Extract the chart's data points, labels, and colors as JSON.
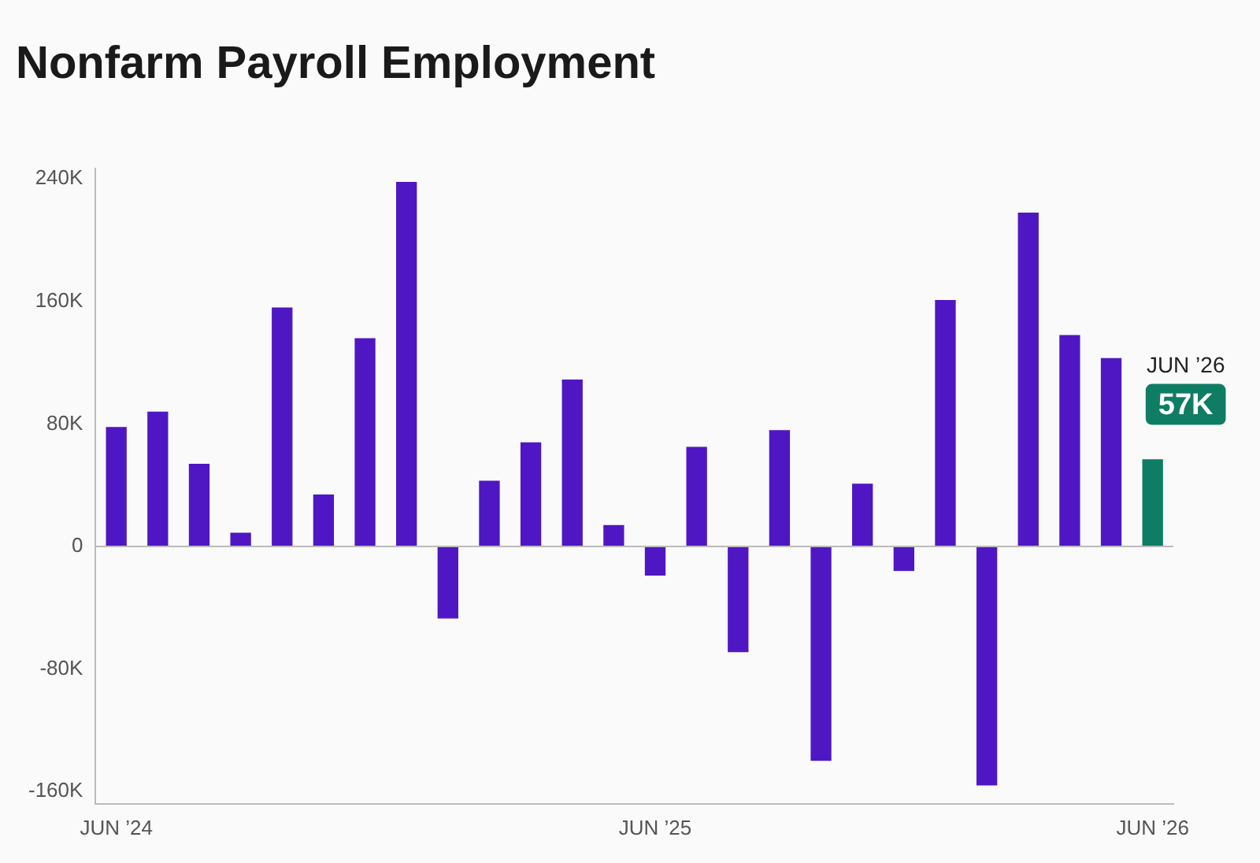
{
  "chart_data": {
    "type": "bar",
    "title": "Nonfarm Payroll Employment",
    "categories": [
      "JUN ’24",
      null,
      null,
      null,
      null,
      null,
      null,
      null,
      null,
      null,
      null,
      null,
      null,
      "JUN ’25",
      null,
      null,
      null,
      null,
      null,
      null,
      null,
      null,
      null,
      null,
      null,
      "JUN ’26"
    ],
    "values": [
      78,
      88,
      54,
      9,
      156,
      34,
      136,
      238,
      -47,
      43,
      68,
      109,
      14,
      -19,
      65,
      -69,
      76,
      -140,
      41,
      -16,
      161,
      -156,
      218,
      138,
      123,
      57
    ],
    "colors": [
      "#4f17c4",
      "#4f17c4",
      "#4f17c4",
      "#4f17c4",
      "#4f17c4",
      "#4f17c4",
      "#4f17c4",
      "#4f17c4",
      "#4f17c4",
      "#4f17c4",
      "#4f17c4",
      "#4f17c4",
      "#4f17c4",
      "#4f17c4",
      "#4f17c4",
      "#4f17c4",
      "#4f17c4",
      "#4f17c4",
      "#4f17c4",
      "#4f17c4",
      "#4f17c4",
      "#4f17c4",
      "#4f17c4",
      "#4f17c4",
      "#4f17c4",
      "#0f7d63"
    ],
    "value_labels": [
      null,
      null,
      null,
      null,
      null,
      null,
      null,
      null,
      null,
      null,
      null,
      null,
      null,
      null,
      null,
      null,
      null,
      null,
      null,
      null,
      null,
      null,
      null,
      null,
      null,
      "57K"
    ],
    "annotations": [
      "JUN ’26"
    ],
    "ylim": [
      -168,
      247
    ],
    "yticks": [
      {
        "value": 240,
        "label": "240K"
      },
      {
        "value": 160,
        "label": "160K"
      },
      {
        "value": 80,
        "label": "80K"
      },
      {
        "value": 0,
        "label": "0"
      },
      {
        "value": -80,
        "label": "-80K"
      },
      {
        "value": -160,
        "label": "-160K"
      }
    ],
    "ref_lines": [
      {
        "axis": "y",
        "value": 0,
        "color": "#bbbbbb"
      }
    ],
    "grid": false,
    "legend": false
  }
}
